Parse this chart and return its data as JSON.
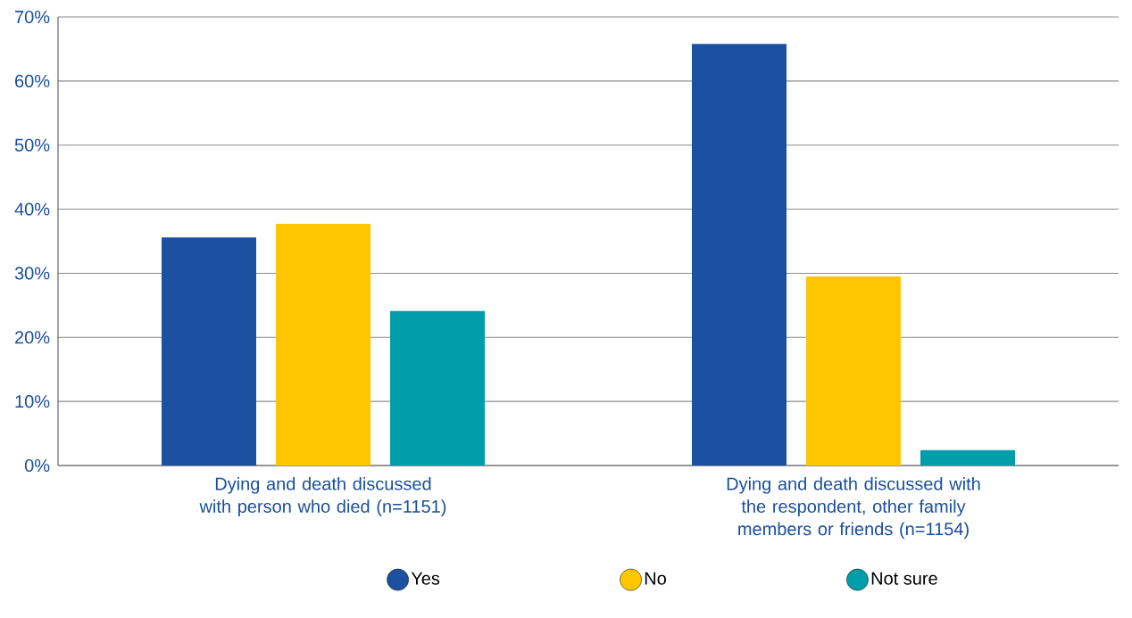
{
  "chart_data": {
    "type": "bar",
    "categories": [
      "Dying and death discussed with person who died (n=1151)",
      "Dying and death discussed with the respondent, other family members or friends (n=1154)"
    ],
    "series": [
      {
        "name": "Yes",
        "color": "#1b51a0",
        "values": [
          35.6,
          65.8
        ]
      },
      {
        "name": "No",
        "color": "#fec600",
        "values": [
          37.7,
          29.5
        ]
      },
      {
        "name": "Not sure",
        "color": "#009dab",
        "values": [
          24.1,
          2.4
        ]
      }
    ],
    "ylim": [
      0,
      70
    ],
    "yticks": [
      {
        "value": 0,
        "label": "0%"
      },
      {
        "value": 10,
        "label": "10%"
      },
      {
        "value": 20,
        "label": "20%"
      },
      {
        "value": 30,
        "label": "30%"
      },
      {
        "value": 40,
        "label": "40%"
      },
      {
        "value": 50,
        "label": "50%"
      },
      {
        "value": 60,
        "label": "60%"
      },
      {
        "value": 70,
        "label": "70%"
      }
    ],
    "grid": "y",
    "legend": "bottom",
    "marker": "circle"
  }
}
